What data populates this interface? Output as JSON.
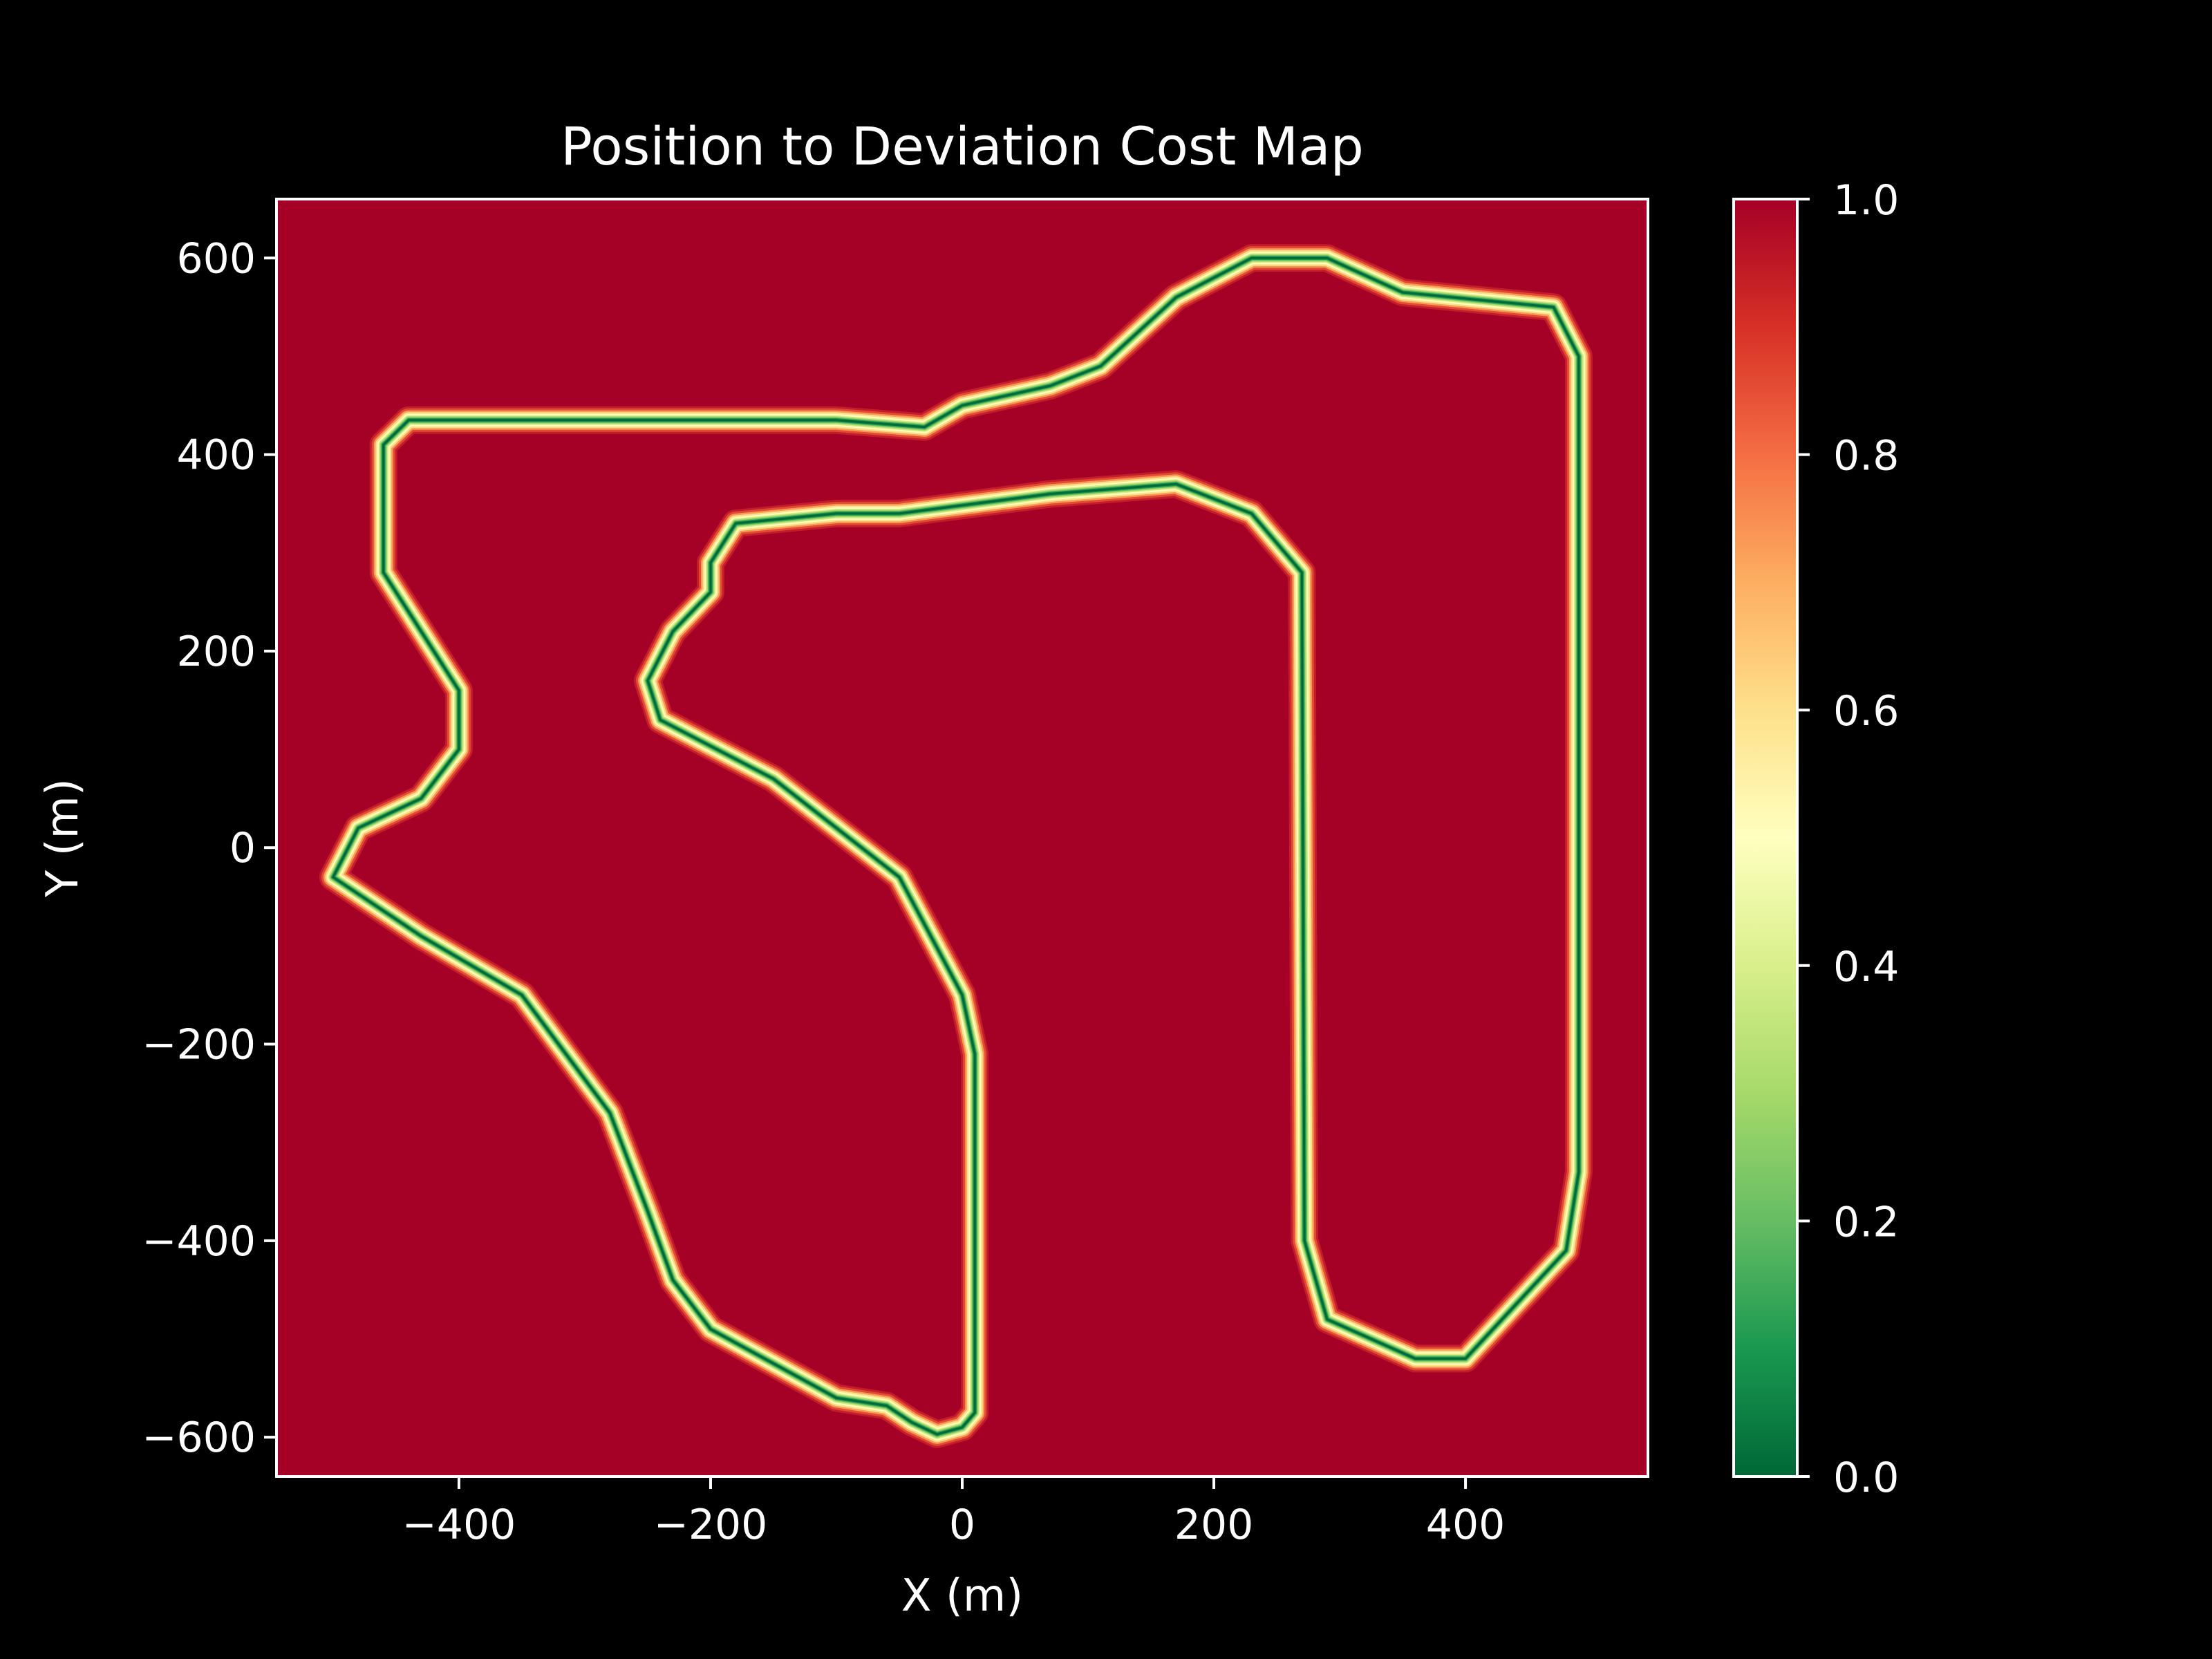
{
  "chart_data": {
    "type": "heatmap",
    "title": "Position to Deviation Cost Map",
    "xlabel": "X (m)",
    "ylabel": "Y (m)",
    "xlim": [
      -545,
      545
    ],
    "ylim": [
      -640,
      660
    ],
    "x_ticks": [
      -400,
      -200,
      0,
      200,
      400
    ],
    "x_tick_labels": [
      "−400",
      "−200",
      "0",
      "200",
      "400"
    ],
    "y_ticks": [
      600,
      400,
      200,
      0,
      -200,
      -400,
      -600
    ],
    "y_tick_labels": [
      "600",
      "400",
      "200",
      "0",
      "−200",
      "−400",
      "−600"
    ],
    "colormap": "RdYlGn_r",
    "colormap_stops": [
      "#006837",
      "#1a9850",
      "#66bd63",
      "#a6d96a",
      "#d9ef8b",
      "#ffffbf",
      "#fee08b",
      "#fdae61",
      "#f46d43",
      "#d73027",
      "#a50026"
    ],
    "background_color": "#a50026",
    "colorbar": {
      "range": [
        0.0,
        1.0
      ],
      "ticks": [
        1.0,
        0.8,
        0.6,
        0.4,
        0.2,
        0.0
      ],
      "tick_labels": [
        "1.0",
        "0.8",
        "0.6",
        "0.4",
        "0.2",
        "0.0"
      ]
    },
    "track_centerline": [
      [
        -30,
        428
      ],
      [
        -100,
        435
      ],
      [
        -250,
        435
      ],
      [
        -440,
        435
      ],
      [
        -460,
        410
      ],
      [
        -460,
        280
      ],
      [
        -440,
        240
      ],
      [
        -400,
        160
      ],
      [
        -400,
        100
      ],
      [
        -430,
        50
      ],
      [
        -480,
        20
      ],
      [
        -500,
        -30
      ],
      [
        -430,
        -90
      ],
      [
        -350,
        -150
      ],
      [
        -280,
        -270
      ],
      [
        -250,
        -370
      ],
      [
        -230,
        -440
      ],
      [
        -200,
        -490
      ],
      [
        -100,
        -560
      ],
      [
        -60,
        -568
      ],
      [
        -40,
        -585
      ],
      [
        -20,
        -597
      ],
      [
        0,
        -590
      ],
      [
        10,
        -575
      ],
      [
        10,
        -210
      ],
      [
        0,
        -150
      ],
      [
        -50,
        -30
      ],
      [
        -150,
        70
      ],
      [
        -240,
        130
      ],
      [
        -250,
        170
      ],
      [
        -230,
        220
      ],
      [
        -200,
        260
      ],
      [
        -200,
        290
      ],
      [
        -180,
        330
      ],
      [
        -100,
        340
      ],
      [
        -50,
        340
      ],
      [
        70,
        360
      ],
      [
        170,
        370
      ],
      [
        230,
        340
      ],
      [
        270,
        280
      ],
      [
        270,
        270
      ],
      [
        272,
        -400
      ],
      [
        290,
        -480
      ],
      [
        360,
        -520
      ],
      [
        400,
        -520
      ],
      [
        480,
        -410
      ],
      [
        490,
        -330
      ],
      [
        490,
        500
      ],
      [
        470,
        550
      ],
      [
        350,
        565
      ],
      [
        290,
        600
      ],
      [
        230,
        600
      ],
      [
        170,
        560
      ],
      [
        110,
        490
      ],
      [
        70,
        470
      ],
      [
        0,
        450
      ]
    ]
  }
}
